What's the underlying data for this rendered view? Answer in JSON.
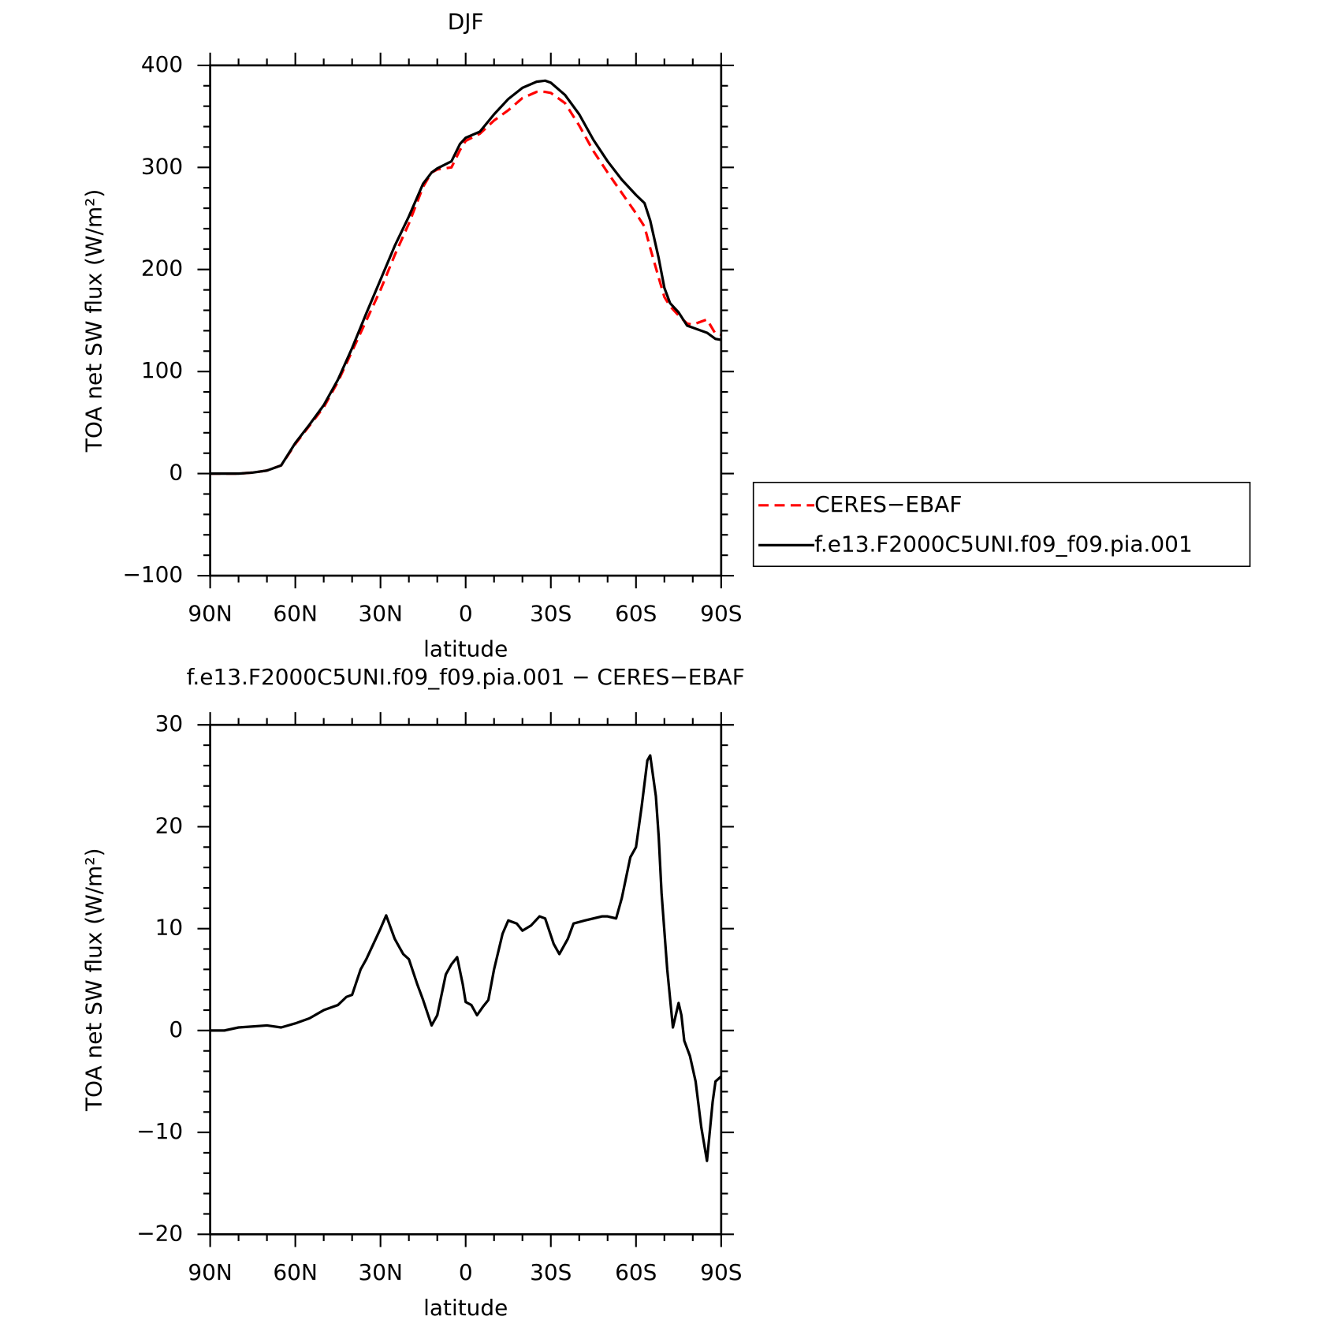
{
  "chart_data": [
    {
      "type": "line",
      "title": "DJF",
      "xlabel": "latitude",
      "ylabel": "TOA net SW flux (W/m²)",
      "xlim": [
        90,
        -90
      ],
      "xticks": [
        {
          "value": 90,
          "label": "90N"
        },
        {
          "value": 60,
          "label": "60N"
        },
        {
          "value": 30,
          "label": "30N"
        },
        0,
        {
          "value": -30,
          "label": "30S"
        },
        {
          "value": -60,
          "label": "60S"
        },
        {
          "value": -90,
          "label": "90S"
        }
      ],
      "ylim": [
        -100,
        400
      ],
      "yticks": [
        {
          "value": -100,
          "label": "−100"
        },
        0,
        100,
        200,
        300,
        400
      ],
      "legend": "right",
      "x": [
        90,
        85,
        80,
        75,
        70,
        65,
        60,
        55,
        50,
        45,
        40,
        35,
        30,
        25,
        20,
        15,
        12,
        10,
        5,
        2,
        0,
        -5,
        -10,
        -15,
        -20,
        -25,
        -28,
        -30,
        -35,
        -40,
        -45,
        -50,
        -55,
        -60,
        -63,
        -65,
        -68,
        -70,
        -72,
        -75,
        -78,
        -80,
        -85,
        -88,
        -90
      ],
      "series": [
        {
          "name": "CERES−EBAF",
          "color": "#ff0000",
          "dashed": true,
          "values": [
            0,
            0,
            0,
            1,
            3,
            8,
            29,
            47,
            65,
            90,
            120,
            150,
            180,
            214,
            245,
            281,
            295,
            298,
            300,
            317,
            326,
            333,
            346,
            356,
            368,
            374,
            374,
            373,
            363,
            341,
            316,
            295,
            275,
            255,
            242,
            221,
            192,
            173,
            164,
            155,
            147,
            146,
            151,
            137,
            136
          ]
        },
        {
          "name": "f.e13.F2000C5UNI.f09_f09.pia.001",
          "color": "#000000",
          "dashed": false,
          "values": [
            0,
            0,
            0,
            1,
            3,
            8,
            30,
            48,
            67,
            92,
            123,
            157,
            190,
            223,
            252,
            284,
            295,
            299,
            306,
            323,
            329,
            335,
            352,
            367,
            378,
            384,
            385,
            383,
            371,
            352,
            327,
            306,
            288,
            273,
            265,
            248,
            211,
            182,
            167,
            158,
            145,
            143,
            138,
            132,
            131
          ]
        }
      ]
    },
    {
      "type": "line",
      "title": "f.e13.F2000C5UNI.f09_f09.pia.001 − CERES−EBAF",
      "xlabel": "latitude",
      "ylabel": "TOA net SW flux (W/m²)",
      "xlim": [
        90,
        -90
      ],
      "xticks": [
        {
          "value": 90,
          "label": "90N"
        },
        {
          "value": 60,
          "label": "60N"
        },
        {
          "value": 30,
          "label": "30N"
        },
        0,
        {
          "value": -30,
          "label": "30S"
        },
        {
          "value": -60,
          "label": "60S"
        },
        {
          "value": -90,
          "label": "90S"
        }
      ],
      "ylim": [
        -20,
        30
      ],
      "yticks": [
        {
          "value": -20,
          "label": "−20"
        },
        {
          "value": -10,
          "label": "−10"
        },
        0,
        10,
        20,
        30
      ],
      "x": [
        90,
        85,
        80,
        75,
        70,
        65,
        60,
        55,
        50,
        45,
        42,
        40,
        37,
        35,
        32,
        30,
        28,
        25,
        22,
        20,
        17,
        15,
        12,
        10,
        7,
        5,
        3,
        1,
        0,
        -2,
        -4,
        -6,
        -8,
        -10,
        -13,
        -15,
        -18,
        -20,
        -23,
        -26,
        -28,
        -31,
        -33,
        -36,
        -38,
        -42,
        -45,
        -48,
        -50,
        -53,
        -55,
        -58,
        -60,
        -62,
        -64,
        -65,
        -67,
        -68,
        -69,
        -71,
        -73,
        -75,
        -76,
        -77,
        -79,
        -81,
        -83,
        -85,
        -87,
        -88,
        -90
      ],
      "series": [
        {
          "color": "#000000",
          "dashed": false,
          "values": [
            0,
            0,
            0.3,
            0.4,
            0.5,
            0.3,
            0.7,
            1.2,
            2,
            2.5,
            3.3,
            3.5,
            6,
            7,
            8.8,
            10,
            11.3,
            9,
            7.5,
            7,
            4.5,
            3,
            0.5,
            1.5,
            5.5,
            6.5,
            7.2,
            4.5,
            2.8,
            2.5,
            1.5,
            2.3,
            3,
            6,
            9.5,
            10.8,
            10.5,
            9.8,
            10.3,
            11.2,
            11,
            8.5,
            7.5,
            9,
            10.5,
            10.8,
            11,
            11.2,
            11.2,
            11,
            13,
            17,
            18,
            22,
            26.5,
            27,
            23,
            19,
            13.5,
            6,
            0.3,
            2.7,
            1.5,
            -1,
            -2.5,
            -5,
            -9.5,
            -12.8,
            -7,
            -5,
            -4.5
          ]
        }
      ]
    }
  ]
}
